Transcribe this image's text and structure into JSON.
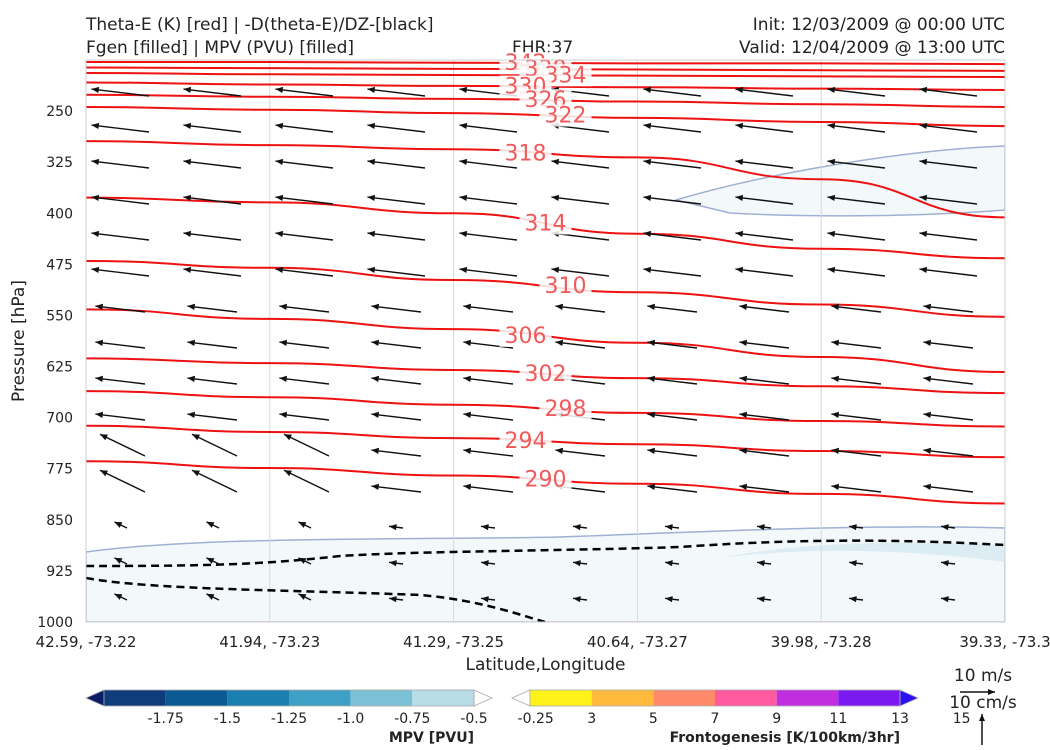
{
  "header": {
    "title_line1": "Theta-E (K) [red] | -D(theta-E)/DZ-[black]",
    "title_line2": "Fgen [filled] | MPV (PVU) [filled]",
    "fhr": "FHR:37",
    "init": "Init: 12/03/2009 @ 00:00 UTC",
    "valid": "Valid: 12/04/2009 @ 13:00 UTC"
  },
  "chart_data": {
    "type": "cross-section",
    "xlabel": "Latitude,Longitude",
    "ylabel": "Pressure [hPa]",
    "x_ticks": [
      "42.59, -73.22",
      "41.94, -73.23",
      "41.29, -73.25",
      "40.64, -73.27",
      "39.98, -73.28",
      "39.33, -73.3"
    ],
    "y_ticks": [
      250,
      325,
      400,
      475,
      550,
      625,
      700,
      775,
      850,
      925,
      1000
    ],
    "ylim": [
      1000,
      175
    ],
    "theta_e_contours": [
      {
        "value": 342,
        "label": "342",
        "y": [
          178,
          178,
          179,
          180,
          180,
          181
        ]
      },
      {
        "value": 338,
        "label": "338",
        "y": [
          186,
          187,
          188,
          189,
          190,
          191
        ]
      },
      {
        "value": 334,
        "label": "334",
        "y": [
          194,
          196,
          197,
          198,
          199,
          200
        ]
      },
      {
        "value": 330,
        "label": "330",
        "y": [
          208,
          211,
          213,
          215,
          217,
          219
        ]
      },
      {
        "value": 326,
        "label": "326",
        "y": [
          226,
          229,
          232,
          236,
          240,
          244
        ]
      },
      {
        "value": 322,
        "label": "322",
        "y": [
          244,
          248,
          253,
          260,
          266,
          272
        ]
      },
      {
        "value": 318,
        "label": "318",
        "y": [
          294,
          300,
          306,
          318,
          350,
          406
        ]
      },
      {
        "value": 314,
        "label": "314",
        "y": [
          377,
          384,
          400,
          430,
          452,
          466
        ]
      },
      {
        "value": 310,
        "label": "310",
        "y": [
          470,
          480,
          498,
          516,
          534,
          552
        ]
      },
      {
        "value": 306,
        "label": "306",
        "y": [
          541,
          555,
          570,
          590,
          611,
          633
        ]
      },
      {
        "value": 302,
        "label": "302",
        "y": [
          613,
          620,
          630,
          642,
          654,
          664
        ]
      },
      {
        "value": 298,
        "label": "298",
        "y": [
          661,
          670,
          681,
          693,
          705,
          713
        ]
      },
      {
        "value": 294,
        "label": "294",
        "y": [
          712,
          721,
          730,
          739,
          749,
          758
        ]
      },
      {
        "value": 290,
        "label": "290",
        "y": [
          764,
          774,
          785,
          797,
          812,
          826
        ]
      }
    ],
    "stability_contour": "dashed black",
    "wind_scale": [
      "10 m/s",
      "10 cm/s"
    ],
    "colorbars": [
      {
        "label": "MPV [PVU]",
        "ticks": [
          "-1.75",
          "-1.5",
          "-1.25",
          "-1.0",
          "-0.75",
          "-0.5",
          "-0.25"
        ],
        "colors": [
          "#0a1c66",
          "#0f3d7c",
          "#0b5a93",
          "#1a7fae",
          "#3ea0c4",
          "#7cc0d6",
          "#b9dde7",
          "#ffffff"
        ]
      },
      {
        "label": "Frontogenesis [K/100km/3hr]",
        "ticks": [
          "3",
          "5",
          "7",
          "9",
          "11",
          "13",
          "15"
        ],
        "colors": [
          "#ffffff",
          "#fff21a",
          "#ffba3c",
          "#ff8a6a",
          "#ff5aa0",
          "#c02ee0",
          "#7a1af0",
          "#2a10f4"
        ]
      }
    ]
  }
}
